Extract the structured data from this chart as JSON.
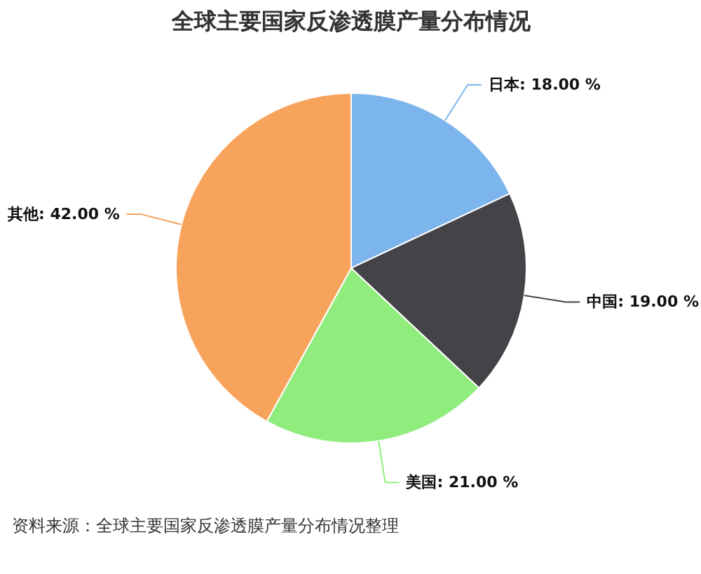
{
  "chart_data": {
    "type": "pie",
    "title": "全球主要国家反渗透膜产量分布情况",
    "categories": [
      "日本",
      "中国",
      "美国",
      "其他"
    ],
    "values": [
      18,
      19,
      21,
      42
    ],
    "colors": [
      "#7cb5ec",
      "#434348",
      "#90ed7d",
      "#f7a35c"
    ],
    "value_labels": [
      "18.00 %",
      "19.00 %",
      "21.00 %",
      "42.00 %"
    ],
    "annotations": [
      "资料来源：全球主要国家反渗透膜产量分布情况整理"
    ]
  }
}
